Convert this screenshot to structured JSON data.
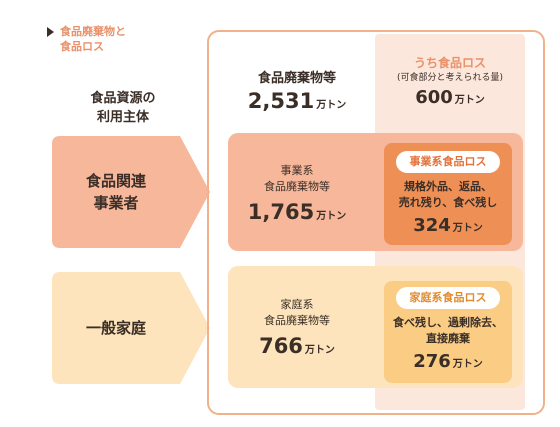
{
  "header": {
    "line1": "食品廃棄物と",
    "line2": "食品ロス"
  },
  "column_title": {
    "line1": "食品資源の",
    "line2": "利用主体"
  },
  "rows": [
    {
      "line1": "食品関連",
      "line2": "事業者"
    },
    {
      "line1": "一般家庭",
      "line2": ""
    }
  ],
  "total": {
    "label": "食品廃棄物等",
    "value": "2,531",
    "unit": "万トン"
  },
  "loss_total": {
    "title": "うち食品ロス",
    "subtitle": "(可食部分と考えられる量)",
    "value": "600",
    "unit": "万トン"
  },
  "business": {
    "label1": "事業系",
    "label2": "食品廃棄物等",
    "value": "1,765",
    "unit": "万トン",
    "loss": {
      "title": "事業系食品ロス",
      "desc1": "規格外品、返品、",
      "desc2": "売れ残り、食べ残し",
      "value": "324",
      "unit": "万トン"
    }
  },
  "household": {
    "label1": "家庭系",
    "label2": "食品廃棄物等",
    "value": "766",
    "unit": "万トン",
    "loss": {
      "title": "家庭系食品ロス",
      "desc1": "食べ残し、過剰除去、",
      "desc2": "直接廃棄",
      "value": "276",
      "unit": "万トン"
    }
  },
  "colors": {
    "accent": "#e8916a",
    "row1_arrow": "#f6b79a",
    "row2_arrow": "#fde4bc",
    "loss_box1": "#ee9056",
    "loss_box2": "#fbcc84"
  }
}
